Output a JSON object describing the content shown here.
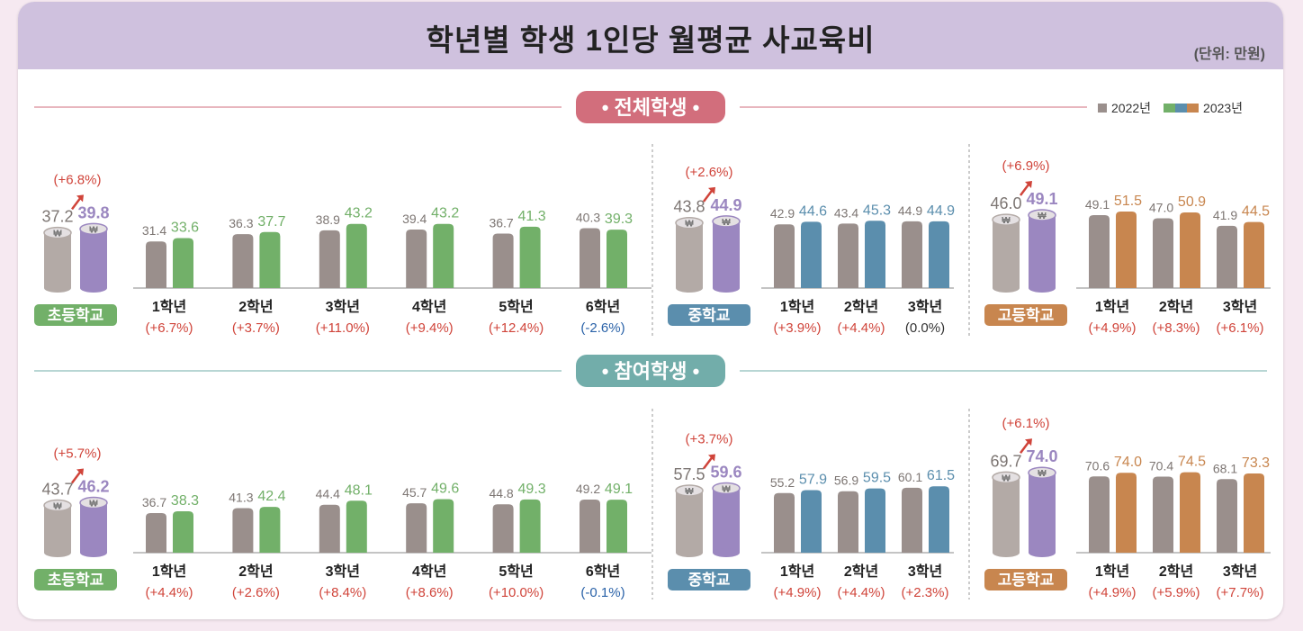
{
  "title": "학년별 학생 1인당 월평균 사교육비",
  "unit": "(단위: 만원)",
  "legend": {
    "y2022": "2022년",
    "y2023": "2023년"
  },
  "colors": {
    "gray": "#9a8f8c",
    "elementary": "#72b069",
    "middle": "#5b8ead",
    "high": "#c8864f",
    "purple": "#9b87c0",
    "cylinder_gray": "#b3aaa6",
    "increase": "#d0443a",
    "decrease": "#2a62a8",
    "neutral": "#333333",
    "pill_all": "#d26e7c",
    "pill_participating": "#72adaa"
  },
  "sections": [
    {
      "label": "• 전체학생 •"
    },
    {
      "label": "• 참여학생 •"
    }
  ],
  "chart_data": [
    {
      "type": "bar",
      "section": "전체학생",
      "groups": [
        {
          "name": "초등학교",
          "total": {
            "v2022": 37.2,
            "v2023": 39.8,
            "change": "(+6.8%)"
          },
          "categories": [
            "1학년",
            "2학년",
            "3학년",
            "4학년",
            "5학년",
            "6학년"
          ],
          "series": [
            {
              "name": "2022년",
              "values": [
                31.4,
                36.3,
                38.9,
                39.4,
                36.7,
                40.3
              ]
            },
            {
              "name": "2023년",
              "values": [
                33.6,
                37.7,
                43.2,
                43.2,
                41.3,
                39.3
              ]
            }
          ],
          "changes": [
            "(+6.7%)",
            "(+3.7%)",
            "(+11.0%)",
            "(+9.4%)",
            "(+12.4%)",
            "(-2.6%)"
          ]
        },
        {
          "name": "중학교",
          "total": {
            "v2022": 43.8,
            "v2023": 44.9,
            "change": "(+2.6%)"
          },
          "categories": [
            "1학년",
            "2학년",
            "3학년"
          ],
          "series": [
            {
              "name": "2022년",
              "values": [
                42.9,
                43.4,
                44.9
              ]
            },
            {
              "name": "2023년",
              "values": [
                44.6,
                45.3,
                44.9
              ]
            }
          ],
          "changes": [
            "(+3.9%)",
            "(+4.4%)",
            "(0.0%)"
          ]
        },
        {
          "name": "고등학교",
          "total": {
            "v2022": 46.0,
            "v2023": 49.1,
            "change": "(+6.9%)"
          },
          "categories": [
            "1학년",
            "2학년",
            "3학년"
          ],
          "series": [
            {
              "name": "2022년",
              "values": [
                49.1,
                47.0,
                41.9
              ]
            },
            {
              "name": "2023년",
              "values": [
                51.5,
                50.9,
                44.5
              ]
            }
          ],
          "changes": [
            "(+4.9%)",
            "(+8.3%)",
            "(+6.1%)"
          ]
        }
      ]
    },
    {
      "type": "bar",
      "section": "참여학생",
      "groups": [
        {
          "name": "초등학교",
          "total": {
            "v2022": 43.7,
            "v2023": 46.2,
            "change": "(+5.7%)"
          },
          "categories": [
            "1학년",
            "2학년",
            "3학년",
            "4학년",
            "5학년",
            "6학년"
          ],
          "series": [
            {
              "name": "2022년",
              "values": [
                36.7,
                41.3,
                44.4,
                45.7,
                44.8,
                49.2
              ]
            },
            {
              "name": "2023년",
              "values": [
                38.3,
                42.4,
                48.1,
                49.6,
                49.3,
                49.1
              ]
            }
          ],
          "changes": [
            "(+4.4%)",
            "(+2.6%)",
            "(+8.4%)",
            "(+8.6%)",
            "(+10.0%)",
            "(-0.1%)"
          ]
        },
        {
          "name": "중학교",
          "total": {
            "v2022": 57.5,
            "v2023": 59.6,
            "change": "(+3.7%)"
          },
          "categories": [
            "1학년",
            "2학년",
            "3학년"
          ],
          "series": [
            {
              "name": "2022년",
              "values": [
                55.2,
                56.9,
                60.1
              ]
            },
            {
              "name": "2023년",
              "values": [
                57.9,
                59.5,
                61.5
              ]
            }
          ],
          "changes": [
            "(+4.9%)",
            "(+4.4%)",
            "(+2.3%)"
          ]
        },
        {
          "name": "고등학교",
          "total": {
            "v2022": 69.7,
            "v2023": 74.0,
            "change": "(+6.1%)"
          },
          "categories": [
            "1학년",
            "2학년",
            "3학년"
          ],
          "series": [
            {
              "name": "2022년",
              "values": [
                70.6,
                70.4,
                68.1
              ]
            },
            {
              "name": "2023년",
              "values": [
                74.0,
                74.5,
                73.3
              ]
            }
          ],
          "changes": [
            "(+4.9%)",
            "(+5.9%)",
            "(+7.7%)"
          ]
        }
      ]
    }
  ]
}
